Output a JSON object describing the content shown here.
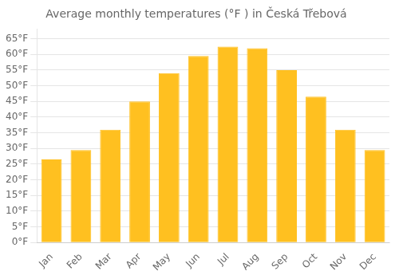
{
  "chart_data": {
    "type": "bar",
    "title": "Average monthly temperatures (°F ) in Česká Třebová",
    "categories": [
      "Jan",
      "Feb",
      "Mar",
      "Apr",
      "May",
      "Jun",
      "Jul",
      "Aug",
      "Sep",
      "Oct",
      "Nov",
      "Dec"
    ],
    "values": [
      26.5,
      29.5,
      36.0,
      45.0,
      54.0,
      59.5,
      62.5,
      62.0,
      55.0,
      46.5,
      36.0,
      29.5
    ],
    "color": "#FFC020",
    "ylim": [
      0,
      68
    ],
    "yticks": [
      {
        "value": 0,
        "label": "0°F"
      },
      {
        "value": 5,
        "label": "5°F"
      },
      {
        "value": 10,
        "label": "10°F"
      },
      {
        "value": 15,
        "label": "15°F"
      },
      {
        "value": 20,
        "label": "20°F"
      },
      {
        "value": 25,
        "label": "25°F"
      },
      {
        "value": 30,
        "label": "30°F"
      },
      {
        "value": 35,
        "label": "35°F"
      },
      {
        "value": 40,
        "label": "40°F"
      },
      {
        "value": 45,
        "label": "45°F"
      },
      {
        "value": 50,
        "label": "50°F"
      },
      {
        "value": 55,
        "label": "55°F"
      },
      {
        "value": 60,
        "label": "60°F"
      },
      {
        "value": 65,
        "label": "65°F"
      }
    ],
    "grid": true
  }
}
